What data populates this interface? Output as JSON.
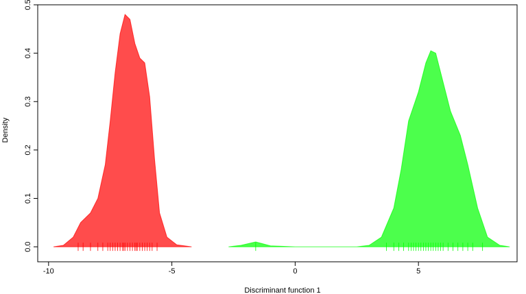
{
  "chart_data": {
    "type": "density",
    "x_label": "Discriminant function 1",
    "y_label": "Density",
    "xlim": [
      -10.44,
      9.0
    ],
    "ylim": [
      -0.031,
      0.5
    ],
    "xticks": [
      -10,
      -5,
      0,
      5
    ],
    "yticks": [
      {
        "value": 0,
        "label": "0.0"
      },
      {
        "value": 0.1,
        "label": "0.1"
      },
      {
        "value": 0.2,
        "label": "0.2"
      },
      {
        "value": 0.3,
        "label": "0.3"
      },
      {
        "value": 0.4,
        "label": "0.4"
      },
      {
        "value": 0.5,
        "label": "0.5"
      }
    ],
    "series": [
      {
        "color": "#ff0000",
        "x": [
          -9.8,
          -9.4,
          -9.0,
          -8.7,
          -8.3,
          -8.0,
          -7.7,
          -7.5,
          -7.3,
          -7.1,
          -6.9,
          -6.7,
          -6.5,
          -6.3,
          -6.1,
          -5.9,
          -5.7,
          -5.5,
          -5.2,
          -4.8,
          -4.2
        ],
        "y": [
          0,
          0.003,
          0.02,
          0.05,
          0.07,
          0.1,
          0.17,
          0.26,
          0.36,
          0.44,
          0.48,
          0.47,
          0.42,
          0.39,
          0.38,
          0.31,
          0.18,
          0.07,
          0.02,
          0.004,
          0
        ],
        "rug": [
          -8.8,
          -8.6,
          -8.3,
          -8.0,
          -7.8,
          -7.6,
          -7.5,
          -7.4,
          -7.3,
          -7.2,
          -7.1,
          -7.0,
          -6.95,
          -6.9,
          -6.8,
          -6.7,
          -6.6,
          -6.5,
          -6.45,
          -6.4,
          -6.3,
          -6.2,
          -6.1,
          -6.0,
          -5.9,
          -5.8,
          -5.6
        ]
      },
      {
        "color": "#00ff00",
        "x": [
          -2.7,
          -2.2,
          -1.6,
          -1.0,
          0,
          2.5,
          3.0,
          3.5,
          4.0,
          4.3,
          4.6,
          5.0,
          5.3,
          5.5,
          5.7,
          6.0,
          6.3,
          6.7,
          7.0,
          7.4,
          7.8,
          8.3,
          8.7
        ],
        "y": [
          0,
          0.003,
          0.01,
          0.002,
          0,
          0,
          0.003,
          0.02,
          0.08,
          0.16,
          0.26,
          0.32,
          0.38,
          0.405,
          0.4,
          0.34,
          0.28,
          0.23,
          0.17,
          0.08,
          0.02,
          0.003,
          0
        ],
        "rug": [
          -1.6,
          3.7,
          4.0,
          4.2,
          4.4,
          4.6,
          4.7,
          4.8,
          4.9,
          5.0,
          5.1,
          5.2,
          5.3,
          5.4,
          5.5,
          5.6,
          5.7,
          5.8,
          5.9,
          6.0,
          6.2,
          6.4,
          6.6,
          6.8,
          7.0,
          7.2,
          7.6
        ]
      }
    ]
  }
}
